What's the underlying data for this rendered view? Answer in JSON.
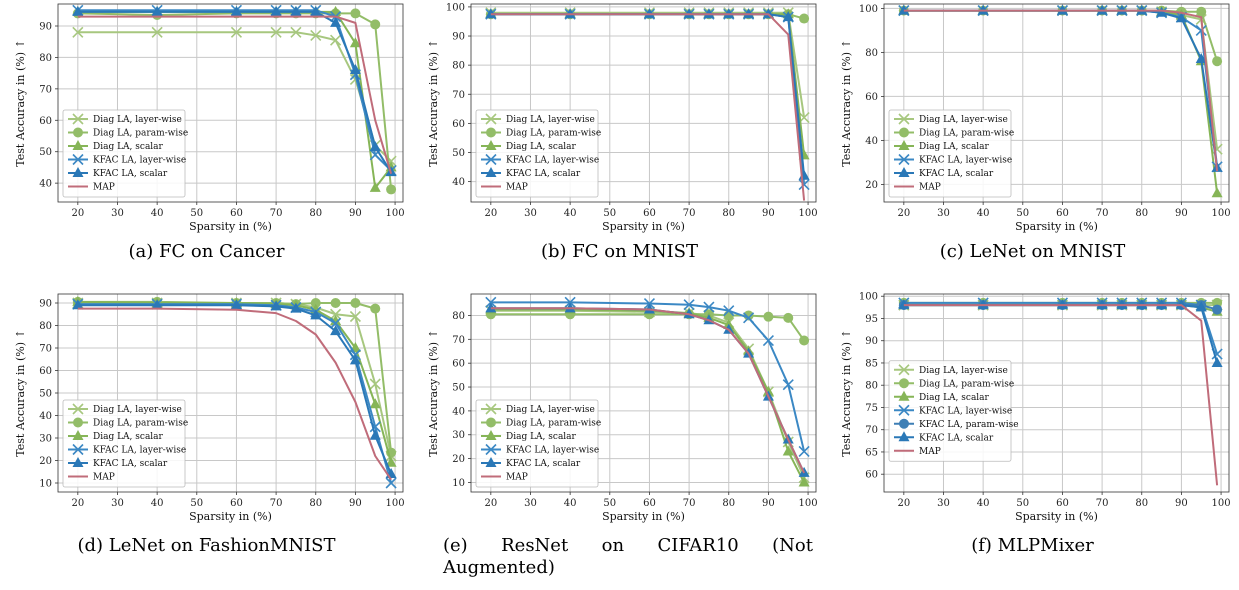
{
  "colors": {
    "diag_layer": "#9dbf73",
    "diag_param": "#8fbc63",
    "diag_scalar": "#86b557",
    "kfac_layer": "#3a86c2",
    "kfac_param": "#3f82b8",
    "kfac_scalar": "#2b7bb9",
    "map": "#c06c7a",
    "grid": "#c8c8c8"
  },
  "series_styles": {
    "Diag LA, layer-wise": {
      "color": "#a7c77f",
      "marker": "x"
    },
    "Diag LA, param-wise": {
      "color": "#93bd68",
      "marker": "circle"
    },
    "Diag LA, scalar": {
      "color": "#86b557",
      "marker": "triangle"
    },
    "KFAC LA, layer-wise": {
      "color": "#3b88c4",
      "marker": "x"
    },
    "KFAC LA, param-wise": {
      "color": "#3e7fb5",
      "marker": "circle"
    },
    "KFAC LA, scalar": {
      "color": "#2a78b7",
      "marker": "triangle"
    },
    "MAP": {
      "color": "#c06c7a",
      "marker": "none"
    }
  },
  "chart_data": [
    {
      "type": "line",
      "caption": "(a)  FC on Cancer",
      "xlabel": "Sparsity in (%)",
      "ylabel": "Test Accuracy in (%) ↑",
      "xlim": [
        15,
        102
      ],
      "ylim": [
        34,
        97
      ],
      "xticks": [
        20,
        30,
        40,
        50,
        60,
        70,
        80,
        90,
        100
      ],
      "yticks": [
        40,
        50,
        60,
        70,
        80,
        90
      ],
      "x": [
        20,
        40,
        60,
        70,
        75,
        80,
        85,
        90,
        95,
        99
      ],
      "legend_position": "lower-left",
      "series": [
        {
          "name": "Diag LA, layer-wise",
          "values": [
            88,
            88,
            88,
            88,
            88,
            87,
            85.5,
            73,
            52,
            47
          ]
        },
        {
          "name": "Diag LA, param-wise",
          "values": [
            94,
            93.5,
            94,
            94,
            94,
            94,
            94,
            94,
            90.5,
            38
          ]
        },
        {
          "name": "Diag LA, scalar",
          "values": [
            94.5,
            94.5,
            94.5,
            94.5,
            94.5,
            94.5,
            94.5,
            84.5,
            38.5,
            45
          ]
        },
        {
          "name": "KFAC LA, layer-wise",
          "values": [
            95,
            95,
            95,
            95,
            95,
            95,
            93,
            74.5,
            49,
            44
          ]
        },
        {
          "name": "KFAC LA, scalar",
          "values": [
            94.5,
            94.5,
            94.5,
            94.5,
            94.5,
            94.5,
            91,
            76,
            51.5,
            43.5
          ]
        },
        {
          "name": "MAP",
          "values": [
            93,
            93,
            93,
            93,
            93,
            93,
            93,
            91,
            60,
            43
          ]
        }
      ]
    },
    {
      "type": "line",
      "caption": "(b)  FC on MNIST",
      "xlabel": "Sparsity in (%)",
      "ylabel": "Test Accuracy in (%) ↑",
      "xlim": [
        15,
        102
      ],
      "ylim": [
        33,
        101
      ],
      "xticks": [
        20,
        30,
        40,
        50,
        60,
        70,
        80,
        90,
        100
      ],
      "yticks": [
        40,
        50,
        60,
        70,
        80,
        90,
        100
      ],
      "x": [
        20,
        40,
        60,
        70,
        75,
        80,
        85,
        90,
        95,
        99
      ],
      "legend_position": "lower-left",
      "series": [
        {
          "name": "Diag LA, layer-wise",
          "values": [
            98,
            98,
            98,
            98,
            98,
            98,
            98,
            98,
            98,
            62
          ]
        },
        {
          "name": "Diag LA, param-wise",
          "values": [
            97.5,
            97.5,
            97.5,
            97.5,
            97.5,
            97.5,
            97.5,
            97.5,
            97.5,
            96
          ]
        },
        {
          "name": "Diag LA, scalar",
          "values": [
            97.5,
            97.5,
            97.5,
            97.5,
            97.5,
            97.5,
            97.5,
            97.5,
            97.5,
            49
          ]
        },
        {
          "name": "KFAC LA, layer-wise",
          "values": [
            97.5,
            97.5,
            97.5,
            97.5,
            97.5,
            97.5,
            97.5,
            97.5,
            96.5,
            39
          ]
        },
        {
          "name": "KFAC LA, scalar",
          "values": [
            97.5,
            97.5,
            97.5,
            97.5,
            97.5,
            97.5,
            97.5,
            97.5,
            96.5,
            42
          ]
        },
        {
          "name": "MAP",
          "values": [
            97.5,
            97.5,
            97.5,
            97.5,
            97.5,
            97.5,
            97.5,
            97.5,
            90.5,
            33.5
          ]
        }
      ]
    },
    {
      "type": "line",
      "caption": "(c)  LeNet on MNIST",
      "xlabel": "Sparsity in (%)",
      "ylabel": "Test Accuracy in (%) ↑",
      "xlim": [
        15,
        102
      ],
      "ylim": [
        12,
        102
      ],
      "xticks": [
        20,
        30,
        40,
        50,
        60,
        70,
        80,
        90,
        100
      ],
      "yticks": [
        20,
        40,
        60,
        80,
        100
      ],
      "x": [
        20,
        40,
        60,
        70,
        75,
        80,
        85,
        90,
        95,
        99
      ],
      "legend_position": "lower-left",
      "series": [
        {
          "name": "Diag LA, layer-wise",
          "values": [
            99,
            99,
            99,
            99,
            99,
            99,
            98.5,
            97,
            95,
            36
          ]
        },
        {
          "name": "Diag LA, param-wise",
          "values": [
            99,
            99,
            99,
            99,
            99,
            99,
            99,
            98.5,
            98.5,
            76
          ]
        },
        {
          "name": "Diag LA, scalar",
          "values": [
            99,
            99,
            99,
            99,
            99,
            99,
            98.5,
            97,
            76,
            16
          ]
        },
        {
          "name": "KFAC LA, layer-wise",
          "values": [
            99,
            99,
            99,
            99,
            99,
            99,
            98,
            96,
            90,
            28
          ]
        },
        {
          "name": "KFAC LA, scalar",
          "values": [
            99,
            99,
            99,
            99,
            99,
            99,
            98,
            95.5,
            77,
            27.5
          ]
        },
        {
          "name": "MAP",
          "values": [
            99,
            99,
            99,
            99,
            99,
            99,
            99,
            98,
            96,
            26
          ]
        }
      ]
    },
    {
      "type": "line",
      "caption": "(d)  LeNet on FashionMNIST",
      "xlabel": "Sparsity in (%)",
      "ylabel": "Test Accuracy in (%) ↑",
      "xlim": [
        15,
        102
      ],
      "ylim": [
        6,
        94
      ],
      "xticks": [
        20,
        30,
        40,
        50,
        60,
        70,
        80,
        90,
        100
      ],
      "yticks": [
        10,
        20,
        30,
        40,
        50,
        60,
        70,
        80,
        90
      ],
      "x": [
        20,
        40,
        60,
        70,
        75,
        80,
        85,
        90,
        95,
        99
      ],
      "legend_position": "lower-left",
      "series": [
        {
          "name": "Diag LA, layer-wise",
          "values": [
            90,
            90,
            90,
            90,
            89.5,
            88,
            85,
            84,
            54,
            22
          ]
        },
        {
          "name": "Diag LA, param-wise",
          "values": [
            90.5,
            90.5,
            90,
            90,
            89.5,
            90,
            90,
            90,
            87.5,
            23.5
          ]
        },
        {
          "name": "Diag LA, scalar",
          "values": [
            90.5,
            90,
            90,
            89.5,
            89,
            87,
            82,
            70,
            45,
            19
          ]
        },
        {
          "name": "KFAC LA, layer-wise",
          "values": [
            89.5,
            89.5,
            89.5,
            89,
            88,
            86,
            81,
            67,
            35,
            10
          ]
        },
        {
          "name": "KFAC LA, scalar",
          "values": [
            89,
            89,
            89,
            88.5,
            87.5,
            84.5,
            77.5,
            64.5,
            31,
            14
          ]
        },
        {
          "name": "MAP",
          "values": [
            87.5,
            87.5,
            87,
            85.5,
            82,
            76,
            63.5,
            46,
            22,
            11.5
          ]
        }
      ]
    },
    {
      "type": "line",
      "caption": "(e)  ResNet on CIFAR10 (Not Augmented)",
      "xlabel": "Sparsity in (%)",
      "ylabel": "Test Accuracy in (%) ↑",
      "xlim": [
        15,
        102
      ],
      "ylim": [
        6,
        89
      ],
      "xticks": [
        20,
        30,
        40,
        50,
        60,
        70,
        80,
        90,
        100
      ],
      "yticks": [
        10,
        20,
        30,
        40,
        50,
        60,
        70,
        80
      ],
      "x": [
        20,
        40,
        60,
        70,
        75,
        80,
        85,
        90,
        95,
        99
      ],
      "legend_position": "lower-left",
      "series": [
        {
          "name": "Diag LA, layer-wise",
          "values": [
            82,
            82,
            81.5,
            81,
            80,
            77,
            66,
            48,
            27,
            12
          ]
        },
        {
          "name": "Diag LA, param-wise",
          "values": [
            80.5,
            80.5,
            80.5,
            80.5,
            80.5,
            80,
            80,
            79.5,
            79,
            69.5
          ]
        },
        {
          "name": "Diag LA, scalar",
          "values": [
            82.5,
            82.5,
            82,
            81,
            79,
            76,
            65,
            48,
            23,
            10
          ]
        },
        {
          "name": "KFAC LA, layer-wise",
          "values": [
            85.5,
            85.5,
            85,
            84.5,
            83.5,
            82,
            79,
            69.5,
            51,
            23
          ]
        },
        {
          "name": "KFAC LA, scalar",
          "values": [
            83,
            83,
            82.5,
            80.5,
            78,
            74,
            64,
            46,
            28,
            14
          ]
        },
        {
          "name": "MAP",
          "values": [
            83,
            83,
            82.5,
            80.5,
            78,
            74,
            64,
            46,
            28,
            14
          ]
        }
      ]
    },
    {
      "type": "line",
      "caption": "(f)  MLPMixer",
      "xlabel": "Sparsity in (%)",
      "ylabel": "Test Accuracy in (%) ↑",
      "xlim": [
        15,
        102
      ],
      "ylim": [
        56,
        100.5
      ],
      "xticks": [
        20,
        30,
        40,
        50,
        60,
        70,
        80,
        90,
        100
      ],
      "yticks": [
        60,
        65,
        70,
        75,
        80,
        85,
        90,
        95,
        100
      ],
      "x": [
        20,
        40,
        60,
        70,
        75,
        80,
        85,
        90,
        95,
        99
      ],
      "legend_position": "center-left",
      "series": [
        {
          "name": "Diag LA, layer-wise",
          "values": [
            98,
            98,
            98,
            98,
            98,
            98,
            98,
            98,
            98,
            98
          ]
        },
        {
          "name": "Diag LA, param-wise",
          "values": [
            98.5,
            98.5,
            98.5,
            98.5,
            98.5,
            98.5,
            98.5,
            98.5,
            98.5,
            98.5
          ]
        },
        {
          "name": "Diag LA, scalar",
          "values": [
            98,
            98,
            98,
            98,
            98,
            98,
            98,
            98,
            97.5,
            96.5
          ]
        },
        {
          "name": "KFAC LA, layer-wise",
          "values": [
            98.5,
            98.5,
            98.5,
            98.5,
            98.5,
            98.5,
            98.5,
            98.5,
            98,
            87
          ]
        },
        {
          "name": "KFAC LA, param-wise",
          "values": [
            98,
            98,
            98,
            98,
            98,
            98,
            98,
            98,
            98,
            97
          ]
        },
        {
          "name": "KFAC LA, scalar",
          "values": [
            98,
            98,
            98,
            98,
            98,
            98,
            98,
            98,
            97.5,
            85
          ]
        },
        {
          "name": "MAP",
          "values": [
            98,
            98,
            98,
            98,
            98,
            98,
            98,
            98,
            94.5,
            57.5
          ]
        }
      ]
    }
  ]
}
